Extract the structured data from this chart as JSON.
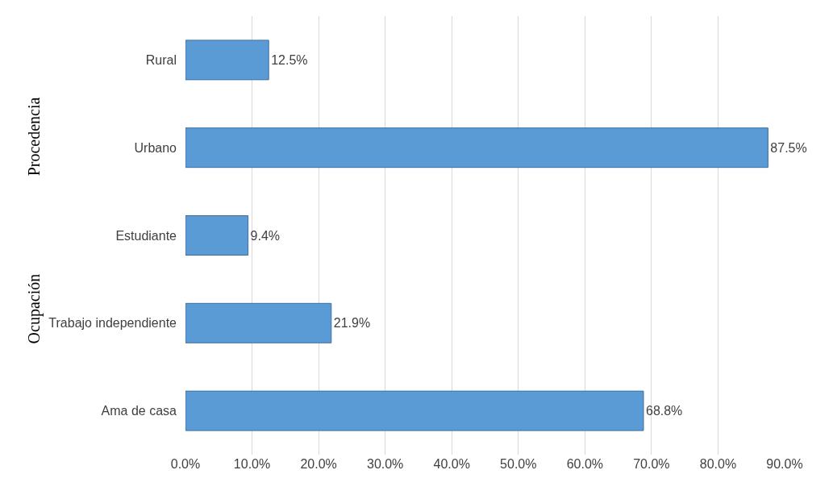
{
  "chart_data": {
    "type": "bar",
    "orientation": "horizontal",
    "categories": [
      "Rural",
      "Urbano",
      "Estudiante",
      "Trabajo independiente",
      "Ama de casa"
    ],
    "values": [
      12.5,
      87.5,
      9.4,
      21.9,
      68.8
    ],
    "value_labels": [
      "12.5%",
      "87.5%",
      "9.4%",
      "21.9%",
      "68.8%"
    ],
    "color": "#5b9bd5",
    "xlim": [
      0,
      90
    ],
    "xticks": [
      {
        "value": 0,
        "label": "0.0%"
      },
      {
        "value": 10,
        "label": "10.0%"
      },
      {
        "value": 20,
        "label": "20.0%"
      },
      {
        "value": 30,
        "label": "30.0%"
      },
      {
        "value": 40,
        "label": "40.0%"
      },
      {
        "value": 50,
        "label": "50.0%"
      },
      {
        "value": 60,
        "label": "60.0%"
      },
      {
        "value": 70,
        "label": "70.0%"
      },
      {
        "value": 80,
        "label": "80.0%"
      },
      {
        "value": 90,
        "label": "90.0%"
      }
    ],
    "grid": "x",
    "annotations": [
      "Procedencia",
      "Ocupación"
    ]
  }
}
